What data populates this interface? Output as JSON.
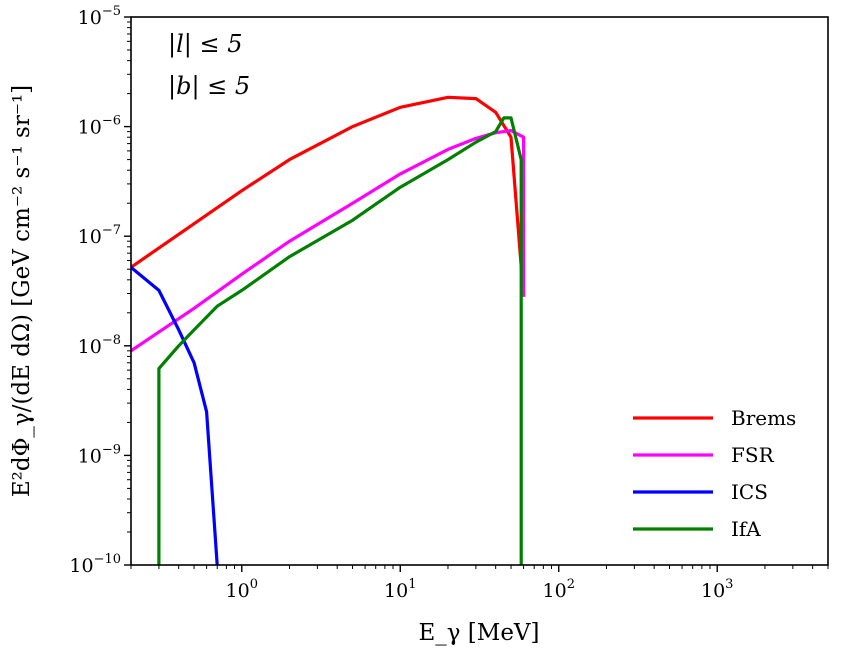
{
  "chart_data": {
    "type": "line",
    "xscale": "log",
    "yscale": "log",
    "xlim": [
      0.2,
      5000
    ],
    "ylim": [
      1e-10,
      1e-05
    ],
    "xlabel": "E_γ [MeV]",
    "ylabel": "E²dΦ_γ/(dE dΩ) [GeV cm⁻² s⁻¹ sr⁻¹]",
    "x_tick_labels": [
      {
        "value": 1,
        "base": "10",
        "exp": "0"
      },
      {
        "value": 10,
        "base": "10",
        "exp": "1"
      },
      {
        "value": 100,
        "base": "10",
        "exp": "2"
      },
      {
        "value": 1000,
        "base": "10",
        "exp": "3"
      }
    ],
    "y_tick_labels": [
      {
        "value": 1e-10,
        "base": "10",
        "exp": "−10"
      },
      {
        "value": 1e-09,
        "base": "10",
        "exp": "−9"
      },
      {
        "value": 1e-08,
        "base": "10",
        "exp": "−8"
      },
      {
        "value": 1e-07,
        "base": "10",
        "exp": "−7"
      },
      {
        "value": 1e-06,
        "base": "10",
        "exp": "−6"
      },
      {
        "value": 1e-05,
        "base": "10",
        "exp": "−5"
      }
    ],
    "annotations": [
      "|l| ≤ 5",
      "|b| ≤ 5"
    ],
    "legend_position": "lower-right",
    "series": [
      {
        "name": "Brems",
        "color": "#ff0000",
        "x": [
          0.2,
          0.5,
          1,
          2,
          5,
          10,
          20,
          30,
          40,
          50,
          60
        ],
        "y": [
          5.2e-08,
          1.3e-07,
          2.6e-07,
          5e-07,
          1e-06,
          1.5e-06,
          1.85e-06,
          1.8e-06,
          1.35e-06,
          8e-07,
          2.8e-08
        ]
      },
      {
        "name": "FSR",
        "color": "#ff00ff",
        "x": [
          0.2,
          0.5,
          1,
          2,
          5,
          10,
          20,
          30,
          40,
          50,
          60,
          60
        ],
        "y": [
          9e-09,
          2.2e-08,
          4.5e-08,
          9e-08,
          2e-07,
          3.7e-07,
          6.2e-07,
          7.8e-07,
          8.8e-07,
          9.2e-07,
          8e-07,
          2.8e-08
        ]
      },
      {
        "name": "ICS",
        "color": "#0000ff",
        "x": [
          0.2,
          0.3,
          0.4,
          0.5,
          0.6,
          0.7
        ],
        "y": [
          5.2e-08,
          3.2e-08,
          1.4e-08,
          7e-09,
          2.5e-09,
          1e-10
        ]
      },
      {
        "name": "IfA",
        "color": "#008000",
        "x": [
          0.3,
          0.3,
          0.4,
          0.5,
          0.7,
          1,
          2,
          5,
          10,
          14,
          20,
          30,
          40,
          45,
          50,
          58,
          58
        ],
        "y": [
          1e-10,
          6.2e-09,
          1e-08,
          1.4e-08,
          2.3e-08,
          3.2e-08,
          6.5e-08,
          1.4e-07,
          2.8e-07,
          3.7e-07,
          5e-07,
          7.2e-07,
          9e-07,
          1.2e-06,
          1.2e-06,
          5e-07,
          1e-10
        ]
      }
    ]
  }
}
